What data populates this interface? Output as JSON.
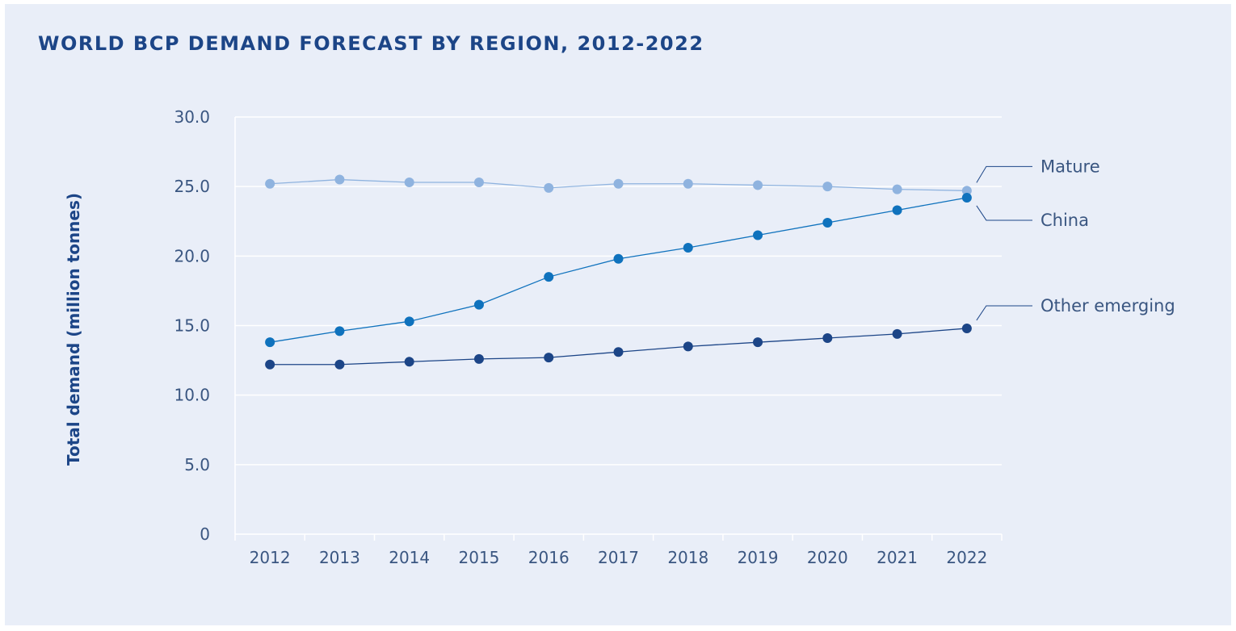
{
  "title": "WORLD BCP DEMAND FORECAST BY REGION, 2012-2022",
  "chart_data": {
    "type": "line",
    "title": "WORLD BCP DEMAND FORECAST BY REGION, 2012-2022",
    "xlabel": "",
    "ylabel": "Total demand (million tonnes)",
    "categories": [
      "2012",
      "2013",
      "2014",
      "2015",
      "2016",
      "2017",
      "2018",
      "2019",
      "2020",
      "2021",
      "2022"
    ],
    "ylim": [
      0,
      30
    ],
    "yticks": [
      "0",
      "5.0",
      "10.0",
      "15.0",
      "20.0",
      "25.0",
      "30.0"
    ],
    "grid": true,
    "legend": "inline labels at right end of series",
    "series": [
      {
        "name": "Mature",
        "color": "#8fb3df",
        "values": [
          25.2,
          25.5,
          25.3,
          25.3,
          24.9,
          25.2,
          25.2,
          25.1,
          25.0,
          24.8,
          24.7
        ]
      },
      {
        "name": "China",
        "color": "#0f72bd",
        "values": [
          13.8,
          14.6,
          15.3,
          16.5,
          18.5,
          19.8,
          20.6,
          21.5,
          22.4,
          23.3,
          24.2
        ]
      },
      {
        "name": "Other emerging",
        "color": "#1c4587",
        "values": [
          12.2,
          12.2,
          12.4,
          12.6,
          12.7,
          13.1,
          13.5,
          13.8,
          14.1,
          14.4,
          14.8
        ]
      }
    ]
  }
}
